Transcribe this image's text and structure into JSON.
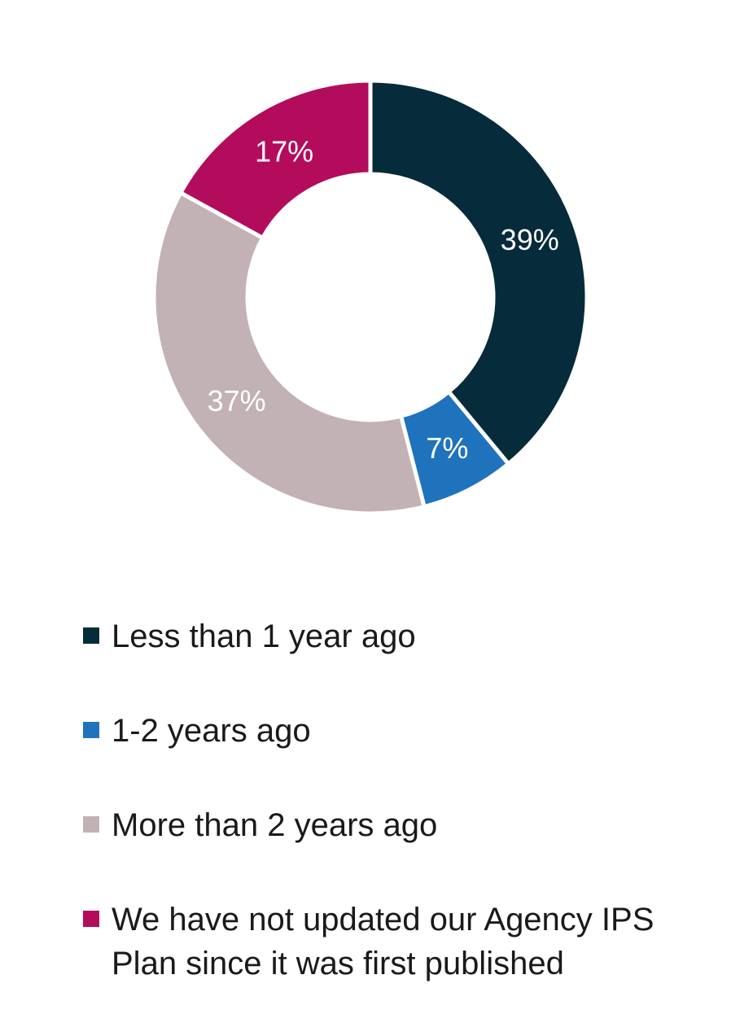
{
  "chart_data": {
    "type": "pie",
    "donut": true,
    "categories": [
      "Less than 1 year ago",
      "1-2 years ago",
      "More than 2 years ago",
      "We have not updated our Agency IPS Plan since it was first published"
    ],
    "values": [
      39,
      7,
      37,
      17
    ],
    "labels": [
      "39%",
      "7%",
      "37%",
      "17%"
    ],
    "colors": [
      "#062b3b",
      "#1f73bd",
      "#c2b1b5",
      "#b30c5c"
    ],
    "legend_position": "bottom"
  }
}
